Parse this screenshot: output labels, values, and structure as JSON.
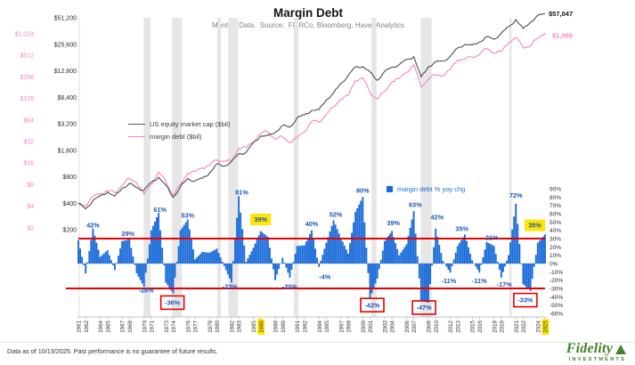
{
  "header": {
    "title": "Margin Debt",
    "subtitle": "Monthly Data.  Source:  FMRCo, Bloomberg, Haver Analytics"
  },
  "legend": [
    {
      "label": "US equity market cap ($bil)"
    },
    {
      "label": "margin debt ($bil)"
    },
    {
      "label": "margin debt % yoy chg"
    }
  ],
  "footer": {
    "note": "Data as of 10/13/2025. Past performance is no guarantee of future results.",
    "brand": "Fidelity",
    "brand_sub": "INVESTMENTS"
  },
  "colors": {
    "equity": "#4d4d4d",
    "margin": "#f087c3",
    "bars": "#1b6cd9",
    "annotation": "#1d55b8",
    "red": "#e60000",
    "highlight": "#ffe600",
    "recession": "#e6e6e6"
  },
  "chart_data": {
    "type": "line+bar",
    "title": "Margin Debt",
    "x_years": [
      1961,
      1962,
      1963,
      1964,
      1965,
      1966,
      1967,
      1968,
      1969,
      1970,
      1971,
      1972,
      1973,
      1974,
      1975,
      1976,
      1977,
      1978,
      1979,
      1980,
      1981,
      1982,
      1983,
      1984,
      1985,
      1986,
      1987,
      1988,
      1989,
      1990,
      1991,
      1992,
      1993,
      1994,
      1995,
      1996,
      1997,
      1998,
      1999,
      2000,
      2001,
      2002,
      2003,
      2004,
      2005,
      2006,
      2007,
      2008,
      2009,
      2010,
      2011,
      2012,
      2013,
      2014,
      2015,
      2016,
      2017,
      2018,
      2019,
      2020,
      2021,
      2022,
      2023,
      2024,
      2025
    ],
    "series": [
      {
        "name": "US equity market cap ($bil)",
        "type": "line",
        "scale": "log-left-black",
        "end_label": "$57,047",
        "values": [
          400,
          345,
          430,
          485,
          535,
          480,
          590,
          670,
          600,
          565,
          690,
          790,
          640,
          465,
          615,
          760,
          715,
          770,
          880,
          1120,
          1055,
          1190,
          1460,
          1510,
          1950,
          2320,
          2350,
          2560,
          3070,
          2920,
          3740,
          4040,
          4540,
          4640,
          5980,
          7160,
          9170,
          11320,
          14220,
          14280,
          12420,
          9950,
          12580,
          14070,
          15080,
          17160,
          18520,
          10900,
          14160,
          16180,
          16520,
          18670,
          23230,
          25530,
          25070,
          27150,
          31370,
          29180,
          34320,
          40480,
          48800,
          38600,
          45700,
          54300,
          57047
        ]
      },
      {
        "name": "margin debt ($bil)",
        "type": "line",
        "scale": "log-left-pink",
        "end_label": "$1,060",
        "values": [
          4.3,
          4.1,
          5.5,
          6.0,
          6.6,
          6.2,
          7.9,
          9.8,
          8.6,
          5.9,
          8.1,
          12.0,
          8.9,
          5.7,
          8.0,
          11.6,
          12.2,
          13.8,
          15.1,
          17.8,
          17.2,
          16.9,
          26.0,
          26.5,
          32.0,
          42.0,
          44.0,
          35.0,
          37.5,
          31.0,
          36.5,
          44.0,
          62.0,
          60.0,
          77.0,
          97.0,
          127,
          141,
          229,
          250,
          154,
          126,
          160,
          222,
          244,
          300,
          380,
          187,
          240,
          276,
          267,
          327,
          445,
          456,
          487,
          530,
          643,
          554,
          579,
          778,
          910,
          664,
          701,
          891,
          1060
        ]
      },
      {
        "name": "margin debt % yoy chg",
        "type": "bar",
        "scale": "pct-right",
        "values": [
          28,
          -12,
          42,
          8,
          16,
          -8,
          27,
          29,
          -12,
          -28,
          40,
          61,
          -23,
          -36,
          40,
          53,
          5,
          14,
          13,
          18,
          -3,
          -23,
          81,
          2,
          19,
          39,
          32,
          -20,
          7,
          -17,
          21,
          22,
          40,
          -4,
          25,
          52,
          31,
          12,
          62,
          80,
          -42,
          -18,
          27,
          39,
          10,
          23,
          63,
          -45,
          -47,
          42,
          3,
          -11,
          21,
          35,
          4,
          -11,
          26,
          21,
          -17,
          10,
          72,
          -25,
          -33,
          25,
          35
        ]
      }
    ],
    "axes": {
      "left_black": [
        "$51,200",
        "$25,600",
        "$12,800",
        "$6,400",
        "$3,200",
        "$1,600",
        "$800",
        "$400",
        "$200"
      ],
      "left_pink": [
        "$1,024",
        "$512",
        "$256",
        "$128",
        "$64",
        "$32",
        "$16",
        "$8",
        "$4",
        "$2"
      ],
      "right_pct": [
        "90%",
        "80%",
        "70%",
        "60%",
        "50%",
        "40%",
        "30%",
        "20%",
        "10%",
        "0%",
        "-10%",
        "-20%",
        "-30%",
        "-40%",
        "-50%",
        "-60%"
      ],
      "x_labels": [
        "1961",
        "1962",
        "1964",
        "1965",
        "1967",
        "1968",
        "1970",
        "1971",
        "1973",
        "1974",
        "1976",
        "1977",
        "1979",
        "1980",
        "1982",
        "1983",
        "1985",
        "1986",
        "1988",
        "1989",
        "1991",
        "1992",
        "1994",
        "1995",
        "1997",
        "1998",
        "2000",
        "2001",
        "2003",
        "2004",
        "2006",
        "2007",
        "2009",
        "2010",
        "2012",
        "2013",
        "2015",
        "2016",
        "2018",
        "2019",
        "2021",
        "2022",
        "2024",
        "2025"
      ],
      "x_highlighted": [
        "1986",
        "2025"
      ]
    },
    "reference_lines_pct": [
      30,
      -30
    ],
    "recessions": [
      [
        1961.0,
        1961.17
      ],
      [
        1969.95,
        1970.9
      ],
      [
        1973.85,
        1975.2
      ],
      [
        1980.05,
        1980.55
      ],
      [
        1981.55,
        1982.9
      ],
      [
        1990.55,
        1991.2
      ],
      [
        2001.2,
        2001.9
      ],
      [
        2007.95,
        2009.45
      ],
      [
        2020.1,
        2020.4
      ]
    ],
    "annotations": [
      {
        "text": "42%",
        "year": 1963.0,
        "pct": 46,
        "kind": "plain"
      },
      {
        "text": "29%",
        "year": 1967.8,
        "pct": 36,
        "kind": "plain"
      },
      {
        "text": "-28%",
        "year": 1970.3,
        "pct": -32,
        "kind": "plain"
      },
      {
        "text": "61%",
        "year": 1972.2,
        "pct": 65,
        "kind": "plain"
      },
      {
        "text": "-36%",
        "year": 1973.9,
        "pct": -47,
        "kind": "box"
      },
      {
        "text": "53%",
        "year": 1976.0,
        "pct": 58,
        "kind": "plain"
      },
      {
        "text": "-23%",
        "year": 1981.8,
        "pct": -28,
        "kind": "plain"
      },
      {
        "text": "81%",
        "year": 1983.4,
        "pct": 86,
        "kind": "plain"
      },
      {
        "text": "39%",
        "year": 1986.0,
        "pct": 53,
        "kind": "highlight"
      },
      {
        "text": "-20%",
        "year": 1990.0,
        "pct": -28,
        "kind": "plain"
      },
      {
        "text": "40%",
        "year": 1993.0,
        "pct": 48,
        "kind": "plain"
      },
      {
        "text": "-4%",
        "year": 1994.8,
        "pct": -16,
        "kind": "plain"
      },
      {
        "text": "52%",
        "year": 1996.3,
        "pct": 59,
        "kind": "plain"
      },
      {
        "text": "80%",
        "year": 2000.0,
        "pct": 88,
        "kind": "plain"
      },
      {
        "text": "-42%",
        "year": 2001.3,
        "pct": -50,
        "kind": "box"
      },
      {
        "text": "39%",
        "year": 2004.2,
        "pct": 49,
        "kind": "plain"
      },
      {
        "text": "63%",
        "year": 2007.2,
        "pct": 71,
        "kind": "plain"
      },
      {
        "text": "-47%",
        "year": 2008.4,
        "pct": -53,
        "kind": "box"
      },
      {
        "text": "42%",
        "year": 2010.2,
        "pct": 56,
        "kind": "plain"
      },
      {
        "text": "-11%",
        "year": 2011.8,
        "pct": -21,
        "kind": "plain"
      },
      {
        "text": "35%",
        "year": 2013.6,
        "pct": 42,
        "kind": "plain"
      },
      {
        "text": "-11%",
        "year": 2016.0,
        "pct": -21,
        "kind": "plain"
      },
      {
        "text": "21%",
        "year": 2017.7,
        "pct": 31,
        "kind": "plain"
      },
      {
        "text": "-17%",
        "year": 2019.4,
        "pct": -25,
        "kind": "plain"
      },
      {
        "text": "72%",
        "year": 2021.0,
        "pct": 82,
        "kind": "plain"
      },
      {
        "text": "-33%",
        "year": 2022.3,
        "pct": -44,
        "kind": "box"
      },
      {
        "text": "35%",
        "year": 2023.6,
        "pct": 46,
        "kind": "highlight"
      }
    ]
  }
}
